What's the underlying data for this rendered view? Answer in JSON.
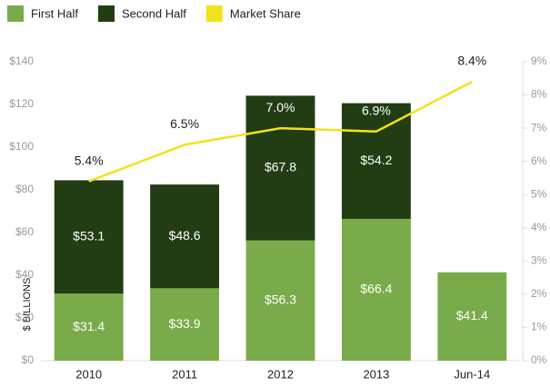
{
  "chart_data": {
    "type": "stacked_bar_line",
    "y_label": "$ BILLIONS",
    "categories": [
      "2010",
      "2011",
      "2012",
      "2013",
      "Jun-14"
    ],
    "series": [
      {
        "name": "First Half",
        "color": "#7aab4a",
        "values": [
          31.4,
          33.9,
          56.3,
          66.4,
          41.4
        ],
        "value_labels": [
          "$31.4",
          "$33.9",
          "$56.3",
          "$66.4",
          "$41.4"
        ]
      },
      {
        "name": "Second Half",
        "color": "#223d14",
        "values": [
          53.1,
          48.6,
          67.8,
          54.2,
          null
        ],
        "value_labels": [
          "$53.1",
          "$48.6",
          "$67.8",
          "$54.2",
          null
        ]
      },
      {
        "name": "Market Share",
        "color": "#f2e21c",
        "axis": "y2",
        "type": "line",
        "values": [
          5.4,
          6.5,
          7.0,
          6.9,
          8.4
        ],
        "value_labels": [
          "5.4%",
          "6.5%",
          "7.0%",
          "6.9%",
          "8.4%"
        ]
      }
    ],
    "ylim": [
      0,
      140
    ],
    "yticks": [
      {
        "value": 0,
        "label": "$0"
      },
      {
        "value": 20,
        "label": "$20"
      },
      {
        "value": 40,
        "label": "$40"
      },
      {
        "value": 60,
        "label": "$60"
      },
      {
        "value": 80,
        "label": "$80"
      },
      {
        "value": 100,
        "label": "$100"
      },
      {
        "value": 120,
        "label": "$120"
      },
      {
        "value": 140,
        "label": "$140"
      }
    ],
    "y2lim": [
      0,
      9
    ],
    "y2ticks": [
      {
        "value": 0,
        "label": "0%"
      },
      {
        "value": 1,
        "label": "1%"
      },
      {
        "value": 2,
        "label": "2%"
      },
      {
        "value": 3,
        "label": "3%"
      },
      {
        "value": 4,
        "label": "4%"
      },
      {
        "value": 5,
        "label": "5%"
      },
      {
        "value": 6,
        "label": "6%"
      },
      {
        "value": 7,
        "label": "7%"
      },
      {
        "value": 8,
        "label": "8%"
      },
      {
        "value": 9,
        "label": "9%"
      }
    ],
    "legend": "top-left",
    "grid": false
  }
}
